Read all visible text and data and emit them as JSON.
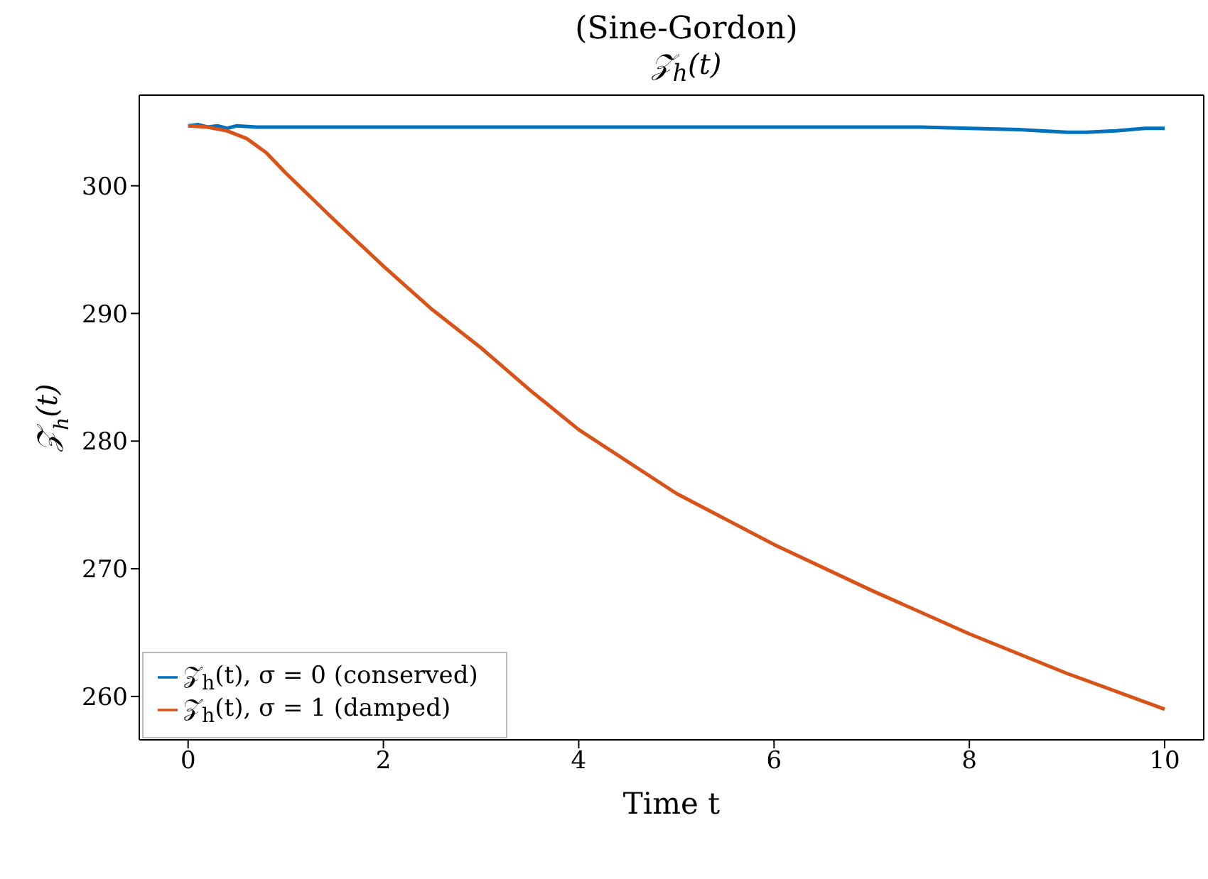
{
  "chart_data": {
    "type": "line",
    "title": "(Sine-Gordon)",
    "subtitle": "𝒵$_{h}$(t)",
    "xlabel": "Time t",
    "ylabel": "𝒵$_{h}$(t)",
    "xlim": [
      -0.5,
      10.4
    ],
    "xticks": [
      0,
      2,
      4,
      6,
      8,
      10
    ],
    "ylim": [
      256.6,
      307.1
    ],
    "yticks": [
      260,
      270,
      280,
      290,
      300
    ],
    "legend": "bottom left",
    "marker": "none",
    "line_style": "solid",
    "series": [
      {
        "name": "𝒵$_{h}$(t),  σ = 0  (conserved)",
        "color": "#0072bd",
        "x": [
          0,
          0.1,
          0.2,
          0.3,
          0.4,
          0.5,
          0.7,
          1,
          2,
          3,
          4,
          5,
          6,
          7,
          7.5,
          8,
          8.5,
          9,
          9.2,
          9.5,
          9.8,
          10
        ],
        "values": [
          304.7,
          304.8,
          304.6,
          304.7,
          304.5,
          304.7,
          304.6,
          304.6,
          304.6,
          304.6,
          304.6,
          304.6,
          304.6,
          304.6,
          304.6,
          304.5,
          304.4,
          304.2,
          304.2,
          304.3,
          304.5,
          304.5
        ]
      },
      {
        "name": "𝒵$_{h}$(t),  σ = 1  (damped)",
        "color": "#d95319",
        "x": [
          0,
          0.2,
          0.4,
          0.6,
          0.8,
          1,
          1.5,
          2,
          2.5,
          3,
          3.5,
          4,
          5,
          6,
          7,
          8,
          9,
          10
        ],
        "values": [
          304.7,
          304.6,
          304.3,
          303.7,
          302.6,
          301.0,
          297.3,
          293.7,
          290.3,
          287.3,
          284.0,
          280.9,
          275.9,
          271.9,
          268.3,
          264.9,
          261.8,
          259.0
        ]
      }
    ]
  }
}
